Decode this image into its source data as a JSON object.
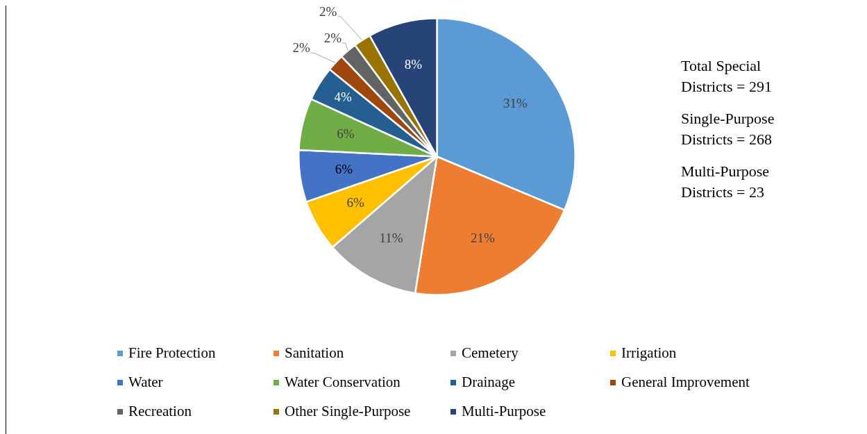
{
  "chart_data": {
    "type": "pie",
    "categories": [
      "Fire Protection",
      "Sanitation",
      "Cemetery",
      "Irrigation",
      "Water",
      "Water Conservation",
      "Drainage",
      "General Improvement",
      "Recreation",
      "Other Single-Purpose",
      "Multi-Purpose"
    ],
    "values": [
      31,
      21,
      11,
      6,
      6,
      6,
      4,
      2,
      2,
      2,
      8
    ],
    "value_labels": [
      "31%",
      "21%",
      "11%",
      "6%",
      "6%",
      "6%",
      "4%",
      "2%",
      "2%",
      "2%",
      "8%"
    ],
    "colors": [
      "#5b9bd5",
      "#ed7d31",
      "#a5a5a5",
      "#ffc000",
      "#4472c4",
      "#70ad47",
      "#255e91",
      "#9e480e",
      "#636363",
      "#997300",
      "#264478"
    ],
    "legend": "bottom",
    "annotations": [
      "Total Special Districts = 291",
      "Single-Purpose Districts = 268",
      "Multi-Purpose Districts = 23"
    ]
  }
}
